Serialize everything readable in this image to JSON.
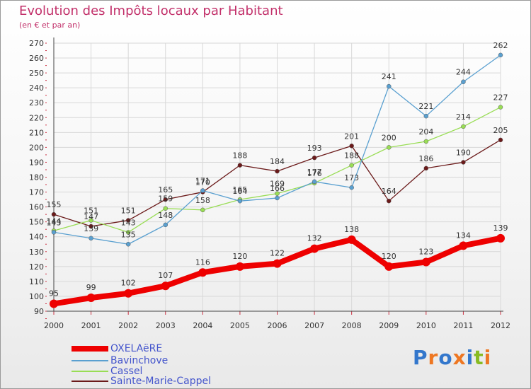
{
  "chart_data": {
    "type": "line",
    "title": "Evolution des Impôts locaux par Habitant",
    "subtitle": "(en € et par an)",
    "xlabel": "",
    "ylabel": "",
    "ylim": [
      90,
      270
    ],
    "y_ticks": [
      90,
      100,
      110,
      120,
      130,
      140,
      150,
      160,
      170,
      180,
      190,
      200,
      210,
      220,
      230,
      240,
      250,
      260,
      270
    ],
    "x": [
      "2000",
      "2001",
      "2002",
      "2003",
      "2004",
      "2005",
      "2006",
      "2007",
      "2008",
      "2009",
      "2010",
      "2011",
      "2012"
    ],
    "grid": true,
    "legend_position": "bottom-left",
    "series": [
      {
        "name": "Sainte-Marie-Cappel",
        "color": "#6b1a1a",
        "values": [
          155,
          147,
          151,
          165,
          170,
          188,
          184,
          193,
          201,
          164,
          186,
          190,
          205
        ]
      },
      {
        "name": "Cassel",
        "color": "#99dd55",
        "values": [
          144,
          151,
          143,
          159,
          158,
          165,
          169,
          176,
          188,
          200,
          204,
          214,
          227
        ]
      },
      {
        "name": "Bavinchove",
        "color": "#5aa0d0",
        "values": [
          143,
          139,
          135,
          148,
          171,
          164,
          166,
          177,
          173,
          241,
          221,
          244,
          262
        ]
      },
      {
        "name": "OXELAëRE",
        "color": "#ee0000",
        "values": [
          95,
          99,
          102,
          107,
          116,
          120,
          122,
          132,
          138,
          120,
          123,
          134,
          139
        ]
      }
    ]
  },
  "legend": {
    "items": [
      {
        "label": "OXELAëRE",
        "color": "#ee0000"
      },
      {
        "label": "Bavinchove",
        "color": "#5aa0d0"
      },
      {
        "label": "Cassel",
        "color": "#99dd55"
      },
      {
        "label": "Sainte-Marie-Cappel",
        "color": "#6b1a1a"
      }
    ]
  },
  "brand": {
    "logo_text": "Proxiti",
    "colors": [
      "#3377cc",
      "#ee7722",
      "#3377cc",
      "#ee7722",
      "#3377cc",
      "#88bb22",
      "#ee7722"
    ]
  }
}
